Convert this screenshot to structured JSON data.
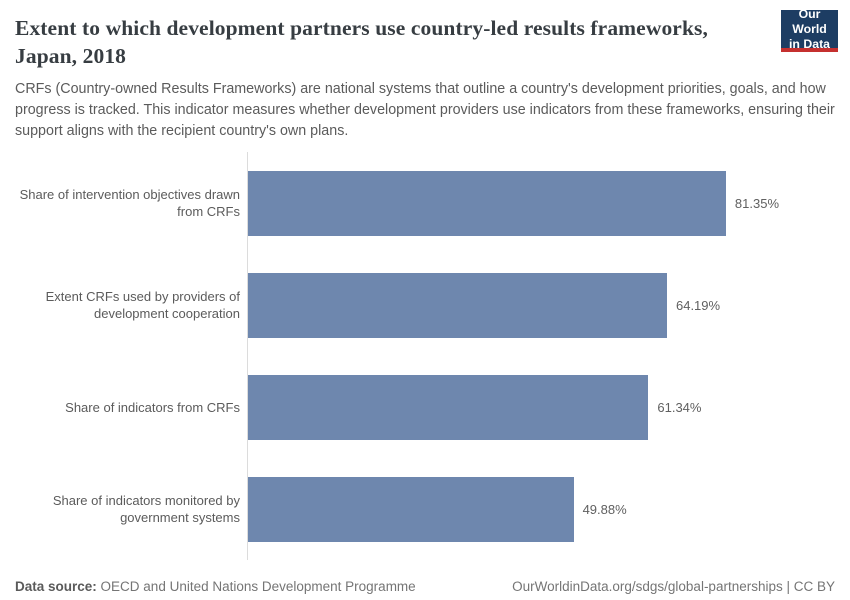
{
  "logo": {
    "line1": "Our World",
    "line2": "in Data",
    "bg_color": "#1d3d63",
    "accent_color": "#c5302f"
  },
  "chart_data": {
    "type": "bar",
    "orientation": "horizontal",
    "title": "Extent to which development partners use country-led results frameworks, Japan, 2018",
    "subtitle": "CRFs (Country-owned Results Frameworks) are national systems that outline a country's development priorities, goals, and how progress is tracked. This indicator measures whether development providers use indicators from these frameworks, ensuring their support aligns with the recipient country's own plans.",
    "categories": [
      "Share of intervention objectives drawn from CRFs",
      "Extent CRFs used by providers of development cooperation",
      "Share of indicators from CRFs",
      "Share of indicators monitored by government systems"
    ],
    "values": [
      81.35,
      64.19,
      61.34,
      49.88
    ],
    "value_labels": [
      "81.35%",
      "64.19%",
      "61.34%",
      "49.88%"
    ],
    "unit": "%",
    "xlim": [
      0,
      81.35
    ],
    "grid": false,
    "legend": "none",
    "bar_color": "#6e87ae",
    "axis_color": "#dcdcdc"
  },
  "footer": {
    "source_label": "Data source:",
    "source_text": "OECD and United Nations Development Programme",
    "link_text": "OurWorldinData.org/sdgs/global-partnerships | CC BY"
  }
}
